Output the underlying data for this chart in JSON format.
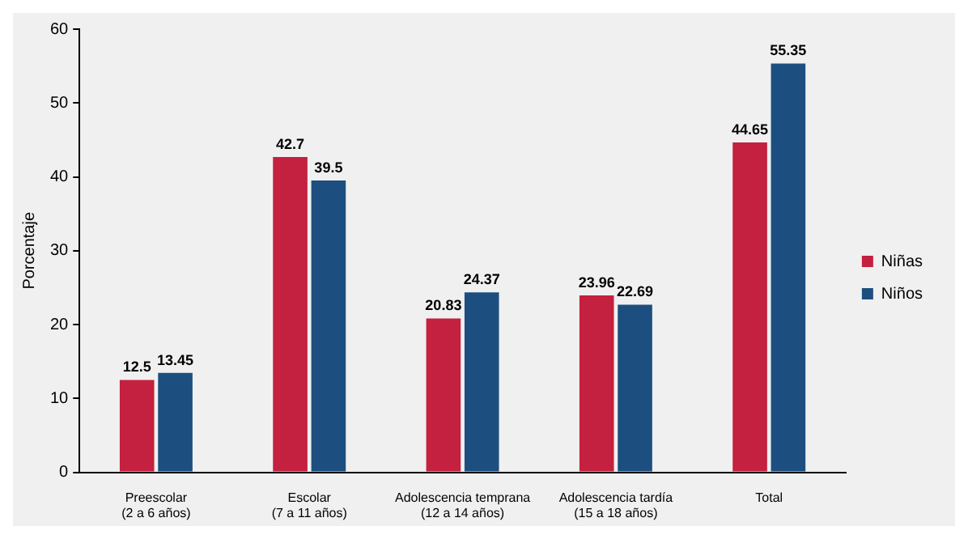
{
  "chart_data": {
    "type": "bar",
    "ylabel": "Porcentaje",
    "categories": [
      "Preescolar\n(2 a 6 años)",
      "Escolar\n(7 a 11 años)",
      "Adolescencia temprana\n(12 a 14 años)",
      "Adolescencia tardía\n(15 a 18 años)",
      "Total"
    ],
    "series": [
      {
        "name": "Niñas",
        "color": "#c4203f",
        "values": [
          12.5,
          42.7,
          20.83,
          23.96,
          44.65
        ]
      },
      {
        "name": "Niños",
        "color": "#1c4f80",
        "values": [
          13.45,
          39.5,
          24.37,
          22.69,
          55.35
        ]
      }
    ],
    "ylim": [
      0,
      60
    ],
    "yticks": [
      0,
      10,
      20,
      30,
      40,
      50,
      60
    ],
    "grid": false,
    "legend": "right",
    "data_labels": true
  }
}
